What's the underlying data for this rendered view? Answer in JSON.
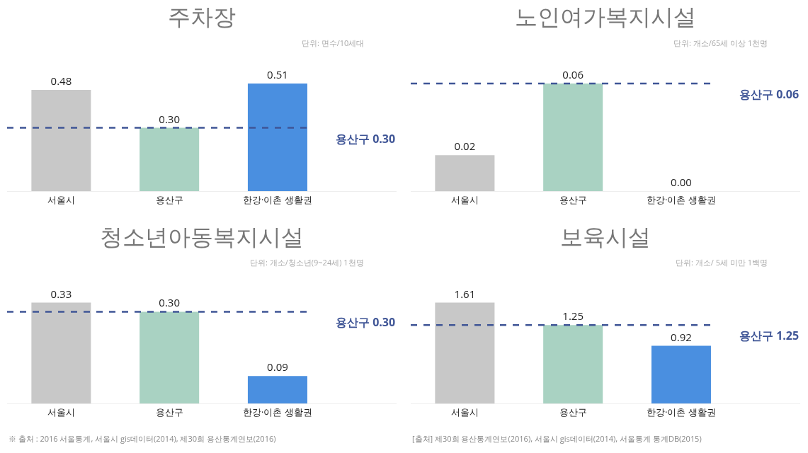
{
  "chart_data": [
    {
      "type": "bar",
      "title": "주차장",
      "subtitle": "단위: 면수/10세대",
      "categories": [
        "서울시",
        "용산구",
        "한강·이촌 생활권"
      ],
      "values": [
        0.48,
        0.3,
        0.51
      ],
      "value_labels": [
        "0.48",
        "0.30",
        "0.51"
      ],
      "colors": [
        "#c8c8c8",
        "#a9d2c2",
        "#4a8fe0"
      ],
      "tick_labels": "x",
      "grid": false,
      "ref_lines": [
        {
          "axis": "y",
          "value": 0.3,
          "label": "용산구 0.30",
          "color": "#3f5596",
          "line_style": "dashed"
        }
      ]
    },
    {
      "type": "bar",
      "title": "노인여가복지시설",
      "subtitle": "단위: 개소/65세 이상 1천명",
      "categories": [
        "서울시",
        "용산구",
        "한강·이촌 생활권"
      ],
      "values": [
        0.02,
        0.06,
        0.0
      ],
      "value_labels": [
        "0.02",
        "0.06",
        "0.00"
      ],
      "colors": [
        "#c8c8c8",
        "#a9d2c2",
        "#4a8fe0"
      ],
      "tick_labels": "x",
      "grid": false,
      "ref_lines": [
        {
          "axis": "y",
          "value": 0.06,
          "label": "용산구 0.06",
          "color": "#3f5596",
          "line_style": "dashed"
        }
      ]
    },
    {
      "type": "bar",
      "title": "청소년아동복지시설",
      "subtitle": "단위: 개소/청소년(9~24세) 1천명",
      "categories": [
        "서울시",
        "용산구",
        "한강·이촌 생활권"
      ],
      "values": [
        0.33,
        0.3,
        0.09
      ],
      "value_labels": [
        "0.33",
        "0.30",
        "0.09"
      ],
      "colors": [
        "#c8c8c8",
        "#a9d2c2",
        "#4a8fe0"
      ],
      "tick_labels": "x",
      "grid": false,
      "ref_lines": [
        {
          "axis": "y",
          "value": 0.3,
          "label": "용산구 0.30",
          "color": "#3f5596",
          "line_style": "dashed"
        }
      ],
      "annotations": [
        "※ 출처 : 2016 서울통계, 서울시 gis데이터(2014), 제30회 용산통계연보(2016)"
      ]
    },
    {
      "type": "bar",
      "title": "보육시설",
      "subtitle": "단위: 개소/ 5세 미만 1백명",
      "categories": [
        "서울시",
        "용산구",
        "한강·이촌 생활권"
      ],
      "values": [
        1.61,
        1.25,
        0.92
      ],
      "value_labels": [
        "1.61",
        "1.25",
        "0.92"
      ],
      "colors": [
        "#c8c8c8",
        "#a9d2c2",
        "#4a8fe0"
      ],
      "tick_labels": "x",
      "grid": false,
      "ref_lines": [
        {
          "axis": "y",
          "value": 1.25,
          "label": "용산구 1.25",
          "color": "#3f5596",
          "line_style": "dashed"
        }
      ],
      "annotations": [
        "[출처] 제30회 용산통계연보(2016), 서울시 gis데이터(2014), 서울통계 통계DB(2015)"
      ]
    }
  ]
}
